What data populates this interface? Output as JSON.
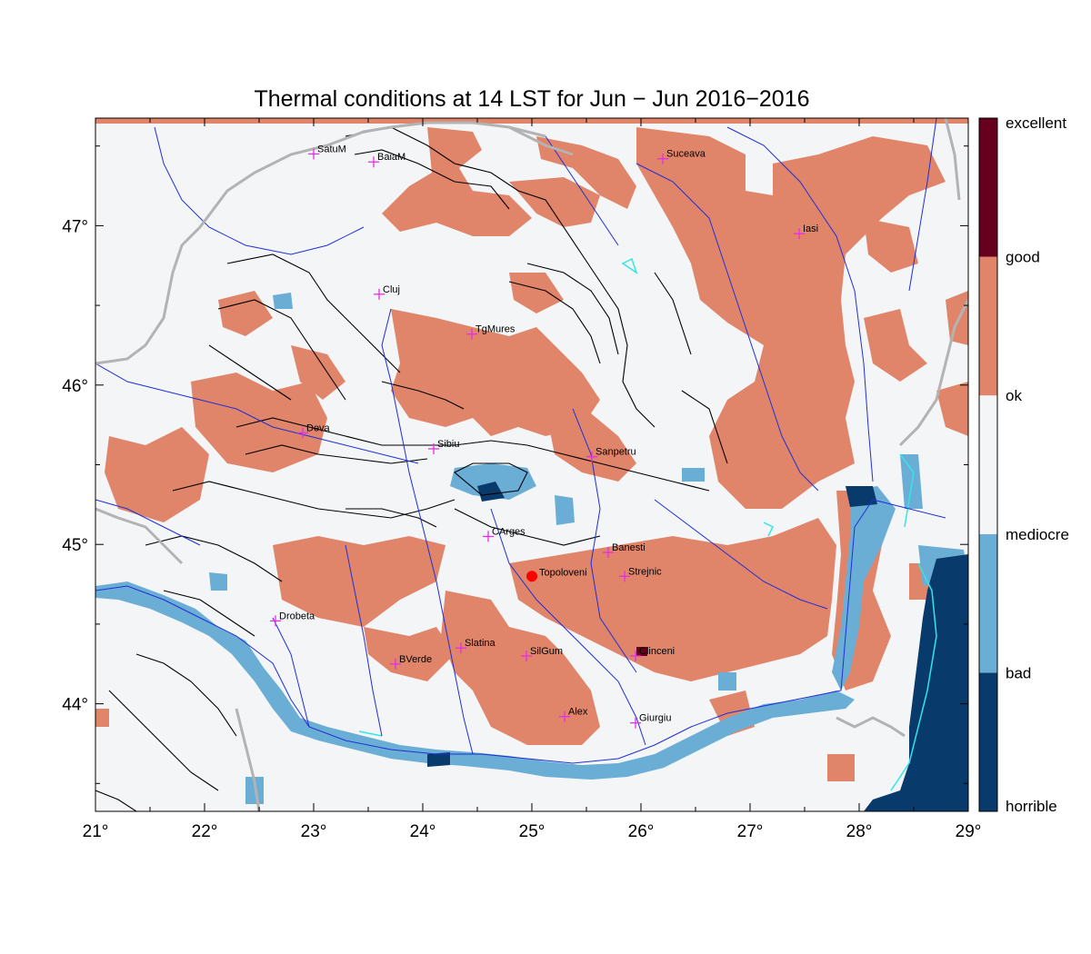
{
  "title": "Thermal conditions at 14 LST for Jun − Jun  2016−2016",
  "axes": {
    "lon_ticks": [
      "21°",
      "22°",
      "23°",
      "24°",
      "25°",
      "26°",
      "27°",
      "28°",
      "29°"
    ],
    "lat_ticks": [
      "44°",
      "45°",
      "46°",
      "47°"
    ]
  },
  "legend": [
    {
      "label": "excellent",
      "color": "#67001f"
    },
    {
      "label": "good",
      "color": "#e0856a"
    },
    {
      "label": "ok",
      "color": "#f4f5f7"
    },
    {
      "label": "mediocre",
      "color": "#6aaed6"
    },
    {
      "label": "bad",
      "color": "#083a6b"
    },
    {
      "label": "horrible",
      "color": "#083a6b"
    }
  ],
  "legend_bins": [
    "#083a6b",
    "#6aaed6",
    "#f4f5f7",
    "#e0856a",
    "#67001f"
  ],
  "colors": {
    "good": "#e0856a",
    "ok": "#f4f5f7",
    "mediocre": "#6aaed6",
    "bad": "#083a6b",
    "excellent": "#67001f",
    "rivers": "#1f2fd6",
    "borders": "#b3b3b3",
    "contours": "#000000",
    "city_marker": "#e62ee6",
    "point_marker": "#ff0000"
  },
  "cities": [
    {
      "name": "SatuM",
      "lon": 23.0,
      "lat": 47.45
    },
    {
      "name": "BaiaM",
      "lon": 23.55,
      "lat": 47.4
    },
    {
      "name": "Suceava",
      "lon": 26.2,
      "lat": 47.42
    },
    {
      "name": "Iasi",
      "lon": 27.45,
      "lat": 46.95
    },
    {
      "name": "Cluj",
      "lon": 23.6,
      "lat": 46.57
    },
    {
      "name": "TgMures",
      "lon": 24.45,
      "lat": 46.32
    },
    {
      "name": "Deva",
      "lon": 22.9,
      "lat": 45.7
    },
    {
      "name": "Sibiu",
      "lon": 24.1,
      "lat": 45.6
    },
    {
      "name": "Sanpetru",
      "lon": 25.55,
      "lat": 45.55
    },
    {
      "name": "CArges",
      "lon": 24.6,
      "lat": 45.05
    },
    {
      "name": "Banesti",
      "lon": 25.7,
      "lat": 44.95
    },
    {
      "name": "Strejnic",
      "lon": 25.85,
      "lat": 44.8
    },
    {
      "name": "Drobeta",
      "lon": 22.65,
      "lat": 44.52
    },
    {
      "name": "Slatina",
      "lon": 24.35,
      "lat": 44.35
    },
    {
      "name": "SilGum",
      "lon": 24.95,
      "lat": 44.3
    },
    {
      "name": "Clinceni",
      "lon": 25.95,
      "lat": 44.3
    },
    {
      "name": "BVerde",
      "lon": 23.75,
      "lat": 44.25
    },
    {
      "name": "Alex",
      "lon": 25.3,
      "lat": 43.92
    },
    {
      "name": "Giurgiu",
      "lon": 25.95,
      "lat": 43.88
    }
  ],
  "point": {
    "name": "Topoloveni",
    "lon": 25.0,
    "lat": 44.8
  }
}
